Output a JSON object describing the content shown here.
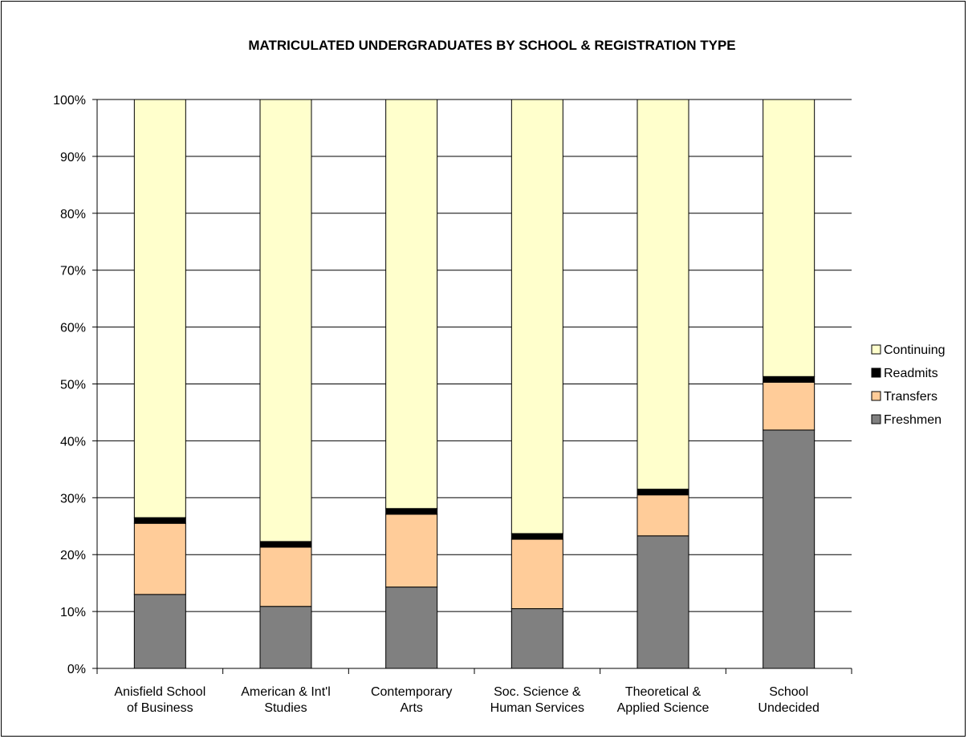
{
  "chart_data": {
    "type": "bar",
    "stacked": true,
    "percent": true,
    "title": "MATRICULATED UNDERGRADUATES BY SCHOOL & REGISTRATION TYPE",
    "xlabel": "",
    "ylabel": "",
    "ylim": [
      0,
      100
    ],
    "y_ticks": [
      "0%",
      "10%",
      "20%",
      "30%",
      "40%",
      "50%",
      "60%",
      "70%",
      "80%",
      "90%",
      "100%"
    ],
    "grid": true,
    "legend_position": "right",
    "categories": [
      [
        "Anisfield School",
        "of Business"
      ],
      [
        "American & Int'l",
        "Studies"
      ],
      [
        "Contemporary",
        "Arts"
      ],
      [
        "Soc. Science &",
        "Human Services"
      ],
      [
        "Theoretical &",
        "Applied Science"
      ],
      [
        "School",
        "Undecided"
      ]
    ],
    "series": [
      {
        "name": "Freshmen",
        "color": "#808080",
        "values": [
          13.0,
          10.9,
          14.3,
          10.5,
          23.3,
          41.9
        ]
      },
      {
        "name": "Transfers",
        "color": "#FFCC99",
        "values": [
          12.5,
          10.4,
          12.8,
          12.2,
          7.2,
          8.4
        ]
      },
      {
        "name": "Readmits",
        "color": "#000000",
        "values": [
          1.0,
          1.0,
          1.0,
          1.0,
          1.0,
          1.0
        ]
      },
      {
        "name": "Continuing",
        "color": "#FFFFCC",
        "values": [
          73.5,
          77.7,
          71.9,
          76.3,
          68.5,
          48.7
        ]
      }
    ],
    "legend_order": [
      "Continuing",
      "Readmits",
      "Transfers",
      "Freshmen"
    ]
  }
}
